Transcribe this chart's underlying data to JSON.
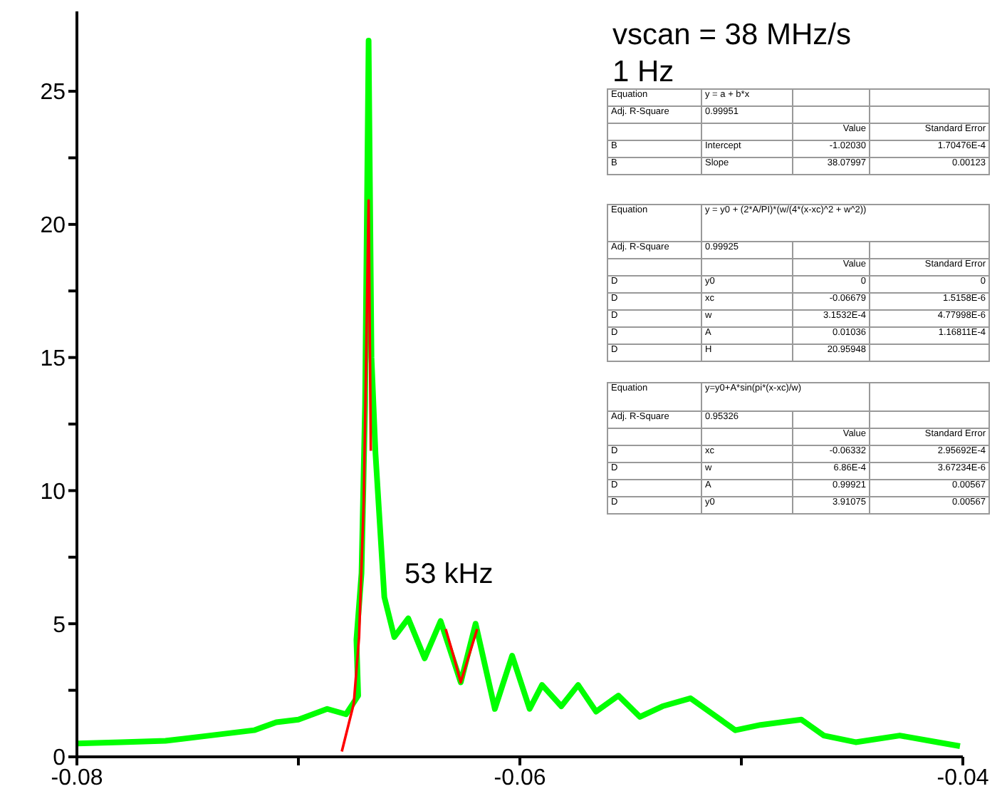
{
  "chart_data": {
    "type": "line",
    "xlim": [
      -0.08,
      -0.04
    ],
    "xticks": [
      -0.08,
      {
        "value": -0.07,
        "label": null
      },
      -0.06,
      {
        "value": -0.05,
        "label": null
      },
      -0.04
    ],
    "ylim": [
      0,
      28
    ],
    "yticks": [
      0,
      {
        "value": 2.5,
        "label": null
      },
      5,
      {
        "value": 7.5,
        "label": null
      },
      10,
      {
        "value": 12.5,
        "label": null
      },
      15,
      {
        "value": 17.5,
        "label": null
      },
      20,
      {
        "value": 22.5,
        "label": null
      },
      25
    ],
    "series": [
      {
        "color": "#00ff00",
        "x": [
          -0.08,
          -0.078,
          -0.076,
          -0.074,
          -0.072,
          -0.071,
          -0.07,
          -0.0687,
          -0.06785,
          -0.0673,
          -0.06738,
          -0.06715,
          -0.06699,
          -0.06683,
          -0.0667,
          -0.06652,
          -0.06612,
          -0.06567,
          -0.06504,
          -0.0643,
          -0.06358,
          -0.06267,
          -0.062,
          -0.06113,
          -0.06035,
          -0.05956,
          -0.059,
          -0.05813,
          -0.05737,
          -0.05656,
          -0.05555,
          -0.05458,
          -0.05356,
          -0.0523,
          -0.05128,
          -0.05027,
          -0.04913,
          -0.04729,
          -0.04628,
          -0.04484,
          -0.04285,
          -0.04114,
          -0.04013
        ],
        "values": [
          0.5,
          0.55,
          0.6,
          0.8,
          1.0,
          1.3,
          1.4,
          1.8,
          1.6,
          2.3,
          4.4,
          6.9,
          13.2,
          26.9,
          15,
          11.4,
          6.0,
          4.5,
          5.2,
          3.7,
          5.1,
          2.8,
          5.0,
          1.8,
          3.8,
          1.8,
          2.7,
          1.9,
          2.7,
          1.7,
          2.3,
          1.5,
          1.9,
          2.2,
          1.6,
          1.0,
          1.2,
          1.4,
          0.8,
          0.55,
          0.8,
          0.55,
          0.4
        ]
      },
      {
        "color": "#ff0000",
        "x": [
          -0.06804,
          -0.0675,
          -0.06726,
          -0.06705,
          -0.06694,
          -0.06683,
          -0.06673
        ],
        "values": [
          0.2,
          2.0,
          4.5,
          9.6,
          15,
          20.9,
          11.5
        ]
      },
      {
        "color": "#ff0000",
        "x": [
          -0.06335,
          -0.063,
          -0.06267,
          -0.0623,
          -0.06193
        ],
        "values": [
          4.8,
          3.8,
          2.8,
          3.8,
          4.8
        ]
      }
    ],
    "annotations": [
      "vscan = 38 MHz/s",
      "1 Hz",
      "53 kHz",
      "Equation",
      "y = a + b*x",
      "Adj. R-Square",
      "0.99951",
      "Value",
      "Standard Error",
      "B",
      "Intercept",
      "-1.02030",
      "1.70476E-4",
      "B",
      "Slope",
      "38.07997",
      "0.00123",
      "Equation",
      "y = y0 + (2*A/PI)*(w/(4*(x-xc)^2 + w^2))",
      "Adj. R-Square",
      "0.99925",
      "Value",
      "Standard Error",
      "D",
      "y0",
      "0",
      "0",
      "D",
      "xc",
      "-0.06679",
      "1.5158E-6",
      "D",
      "w",
      "3.1532E-4",
      "4.77998E-6",
      "D",
      "A",
      "0.01036",
      "1.16811E-4",
      "D",
      "H",
      "20.95948",
      "Equation",
      "y=y0+A*sin(pi*(x-xc)/w)",
      "Adj. R-Square",
      "0.95326",
      "Value",
      "Standard Error",
      "D",
      "xc",
      "-0.06332",
      "2.95692E-4",
      "D",
      "w",
      "6.86E-4",
      "3.67234E-6",
      "D",
      "A",
      "0.99921",
      "0.00567",
      "D",
      "y0",
      "3.91075",
      "0.00567"
    ]
  }
}
